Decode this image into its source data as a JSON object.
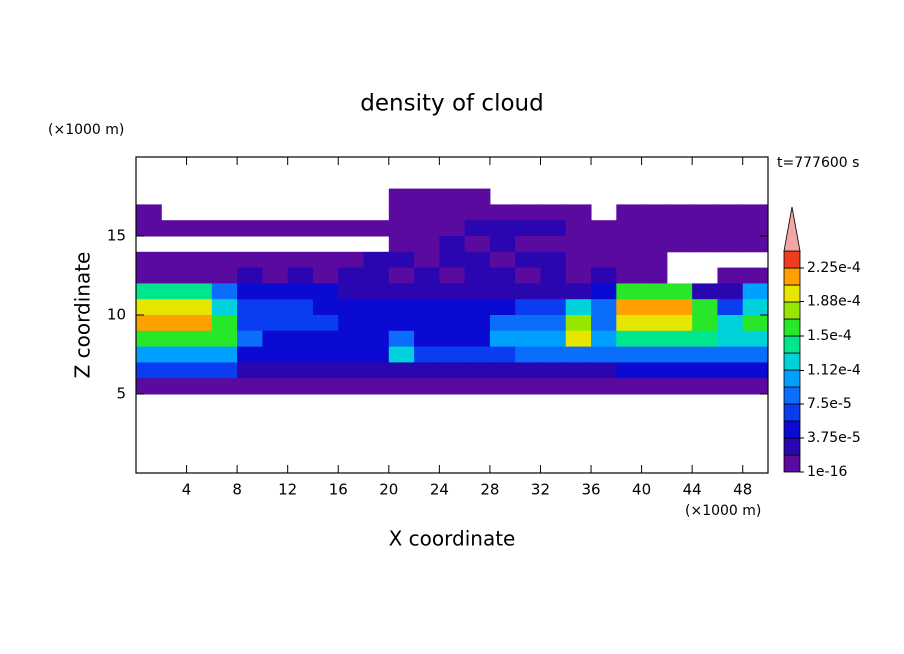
{
  "chart_data": {
    "type": "contour",
    "title": "density of cloud",
    "y_unit": "(×1000 m)",
    "x_unit": "(×1000 m)",
    "time_label": "t=777600 s",
    "xlabel": "X coordinate",
    "ylabel": "Z coordinate",
    "xlim": [
      0,
      50
    ],
    "ylim": [
      0,
      20
    ],
    "xticks": [
      4,
      8,
      12,
      16,
      20,
      24,
      28,
      32,
      36,
      40,
      44,
      48
    ],
    "yticks": [
      5,
      10,
      15
    ],
    "x": [
      1,
      3,
      5,
      7,
      9,
      11,
      13,
      15,
      17,
      19,
      21,
      23,
      25,
      27,
      29,
      31,
      33,
      35,
      37,
      39,
      41,
      43,
      45,
      47,
      49
    ],
    "y": [
      17.5,
      16.5,
      15.5,
      14.5,
      13.5,
      12.5,
      11.5,
      10.5,
      9.5,
      8.5,
      7.5,
      6.5,
      5.5
    ],
    "values": [
      [
        null,
        null,
        null,
        null,
        null,
        null,
        null,
        null,
        null,
        null,
        1e-06,
        1e-06,
        1e-06,
        1e-06,
        null,
        null,
        null,
        null,
        null,
        null,
        null,
        null,
        null,
        null,
        null
      ],
      [
        1e-06,
        null,
        null,
        null,
        null,
        null,
        null,
        null,
        null,
        null,
        1e-06,
        1e-06,
        1e-06,
        1e-06,
        1e-06,
        1e-06,
        1e-06,
        1e-06,
        null,
        1e-06,
        1e-06,
        1e-06,
        1e-06,
        1e-06,
        1e-06
      ],
      [
        1e-06,
        1e-06,
        1e-06,
        1e-06,
        1e-06,
        1e-06,
        1e-06,
        1e-06,
        1e-06,
        1e-06,
        1e-06,
        1e-06,
        1e-06,
        2e-05,
        2e-05,
        2e-05,
        2e-05,
        1e-06,
        1e-06,
        1e-06,
        1e-06,
        1e-06,
        1e-06,
        1e-06,
        1e-06
      ],
      [
        null,
        null,
        null,
        null,
        null,
        null,
        null,
        null,
        null,
        null,
        1e-06,
        1e-06,
        2e-05,
        1e-06,
        2e-05,
        1e-06,
        1e-06,
        1e-06,
        1e-06,
        1e-06,
        1e-06,
        1e-06,
        1e-06,
        1e-06,
        1e-06
      ],
      [
        1e-06,
        1e-06,
        1e-06,
        1e-06,
        1e-06,
        1e-06,
        1e-06,
        1e-06,
        1e-06,
        2e-05,
        2e-05,
        1e-06,
        2e-05,
        2e-05,
        1e-06,
        2e-05,
        2e-05,
        1e-06,
        1e-06,
        1e-06,
        1e-06,
        null,
        null,
        null,
        null
      ],
      [
        1e-06,
        1e-06,
        1e-06,
        1e-06,
        2e-05,
        1e-06,
        2e-05,
        1e-06,
        2e-05,
        2e-05,
        1e-06,
        2e-05,
        1e-06,
        2e-05,
        2e-05,
        1e-06,
        2e-05,
        1e-06,
        2e-05,
        1e-06,
        1e-06,
        null,
        null,
        1e-06,
        1e-06
      ],
      [
        0.00014,
        0.00014,
        0.00014,
        9e-05,
        4e-05,
        4e-05,
        4e-05,
        4e-05,
        3e-05,
        3e-05,
        3e-05,
        3e-05,
        3e-05,
        3e-05,
        3e-05,
        3e-05,
        3e-05,
        3e-05,
        5e-05,
        0.00015,
        0.00015,
        0.00015,
        3e-05,
        3e-05,
        0.0001
      ],
      [
        0.00019,
        0.00019,
        0.00019,
        0.00013,
        6e-05,
        6e-05,
        6e-05,
        4e-05,
        4e-05,
        4e-05,
        4e-05,
        4e-05,
        4e-05,
        4e-05,
        4e-05,
        6e-05,
        6e-05,
        0.00013,
        8e-05,
        0.00021,
        0.00021,
        0.00021,
        0.00015,
        6e-05,
        0.00012
      ],
      [
        0.00022,
        0.00022,
        0.00022,
        0.00015,
        7e-05,
        7e-05,
        7e-05,
        7e-05,
        4e-05,
        4e-05,
        4e-05,
        4e-05,
        4e-05,
        4e-05,
        9e-05,
        9e-05,
        9e-05,
        0.00018,
        8e-05,
        0.00019,
        0.00019,
        0.00019,
        0.00015,
        0.00012,
        0.00015
      ],
      [
        0.00016,
        0.00016,
        0.00016,
        0.00016,
        8e-05,
        4e-05,
        4e-05,
        4e-05,
        4e-05,
        4e-05,
        9e-05,
        5e-05,
        5e-05,
        5e-05,
        0.00011,
        0.00011,
        0.00011,
        0.00019,
        0.0001,
        0.00014,
        0.00014,
        0.00014,
        0.00014,
        0.00012,
        0.00012
      ],
      [
        0.00011,
        0.00011,
        0.00011,
        0.00011,
        5e-05,
        5e-05,
        5e-05,
        5e-05,
        5e-05,
        5e-05,
        0.00012,
        6e-05,
        6e-05,
        6e-05,
        6e-05,
        9e-05,
        9e-05,
        9e-05,
        8e-05,
        9e-05,
        9e-05,
        9e-05,
        9e-05,
        9e-05,
        9e-05
      ],
      [
        6e-05,
        6e-05,
        6e-05,
        6e-05,
        3e-05,
        3e-05,
        3e-05,
        3e-05,
        3e-05,
        3e-05,
        3e-05,
        3e-05,
        3e-05,
        3e-05,
        3e-05,
        3e-05,
        3e-05,
        3e-05,
        3e-05,
        5e-05,
        5e-05,
        5e-05,
        5e-05,
        5e-05,
        5e-05
      ],
      [
        1.5e-05,
        1.5e-05,
        1.5e-05,
        1.5e-05,
        1.5e-05,
        1.5e-05,
        1.5e-05,
        1.5e-05,
        1.5e-05,
        1.5e-05,
        1.5e-05,
        1.5e-05,
        1.5e-05,
        1.5e-05,
        1.5e-05,
        1.5e-05,
        1.5e-05,
        1.5e-05,
        1.5e-05,
        1.5e-05,
        1.5e-05,
        1.5e-05,
        1.5e-05,
        1.5e-05,
        1.5e-05
      ]
    ],
    "levels": [
      1e-16,
      1.875e-05,
      3.75e-05,
      5.625e-05,
      7.5e-05,
      9.375e-05,
      0.0001125,
      0.00013125,
      0.00015,
      0.00016875,
      0.0001875,
      0.00020625,
      0.000225,
      0.00024375
    ],
    "colors": [
      "#5a0a9e",
      "#2a06b0",
      "#0a0ad2",
      "#0a3cf0",
      "#0a6efa",
      "#00a0ff",
      "#00d2dc",
      "#00e68c",
      "#28e628",
      "#96e600",
      "#e6e600",
      "#ffa000",
      "#f03c1e"
    ],
    "extend_color": "#f4a6a6",
    "cticks": [
      {
        "value": 1e-16,
        "label": "1e-16"
      },
      {
        "value": 3.75e-05,
        "label": "3.75e-5"
      },
      {
        "value": 7.5e-05,
        "label": "7.5e-5"
      },
      {
        "value": 0.000112,
        "label": "1.12e-4"
      },
      {
        "value": 0.00015,
        "label": "1.5e-4"
      },
      {
        "value": 0.000188,
        "label": "1.88e-4"
      },
      {
        "value": 0.000225,
        "label": "2.25e-4"
      }
    ]
  }
}
